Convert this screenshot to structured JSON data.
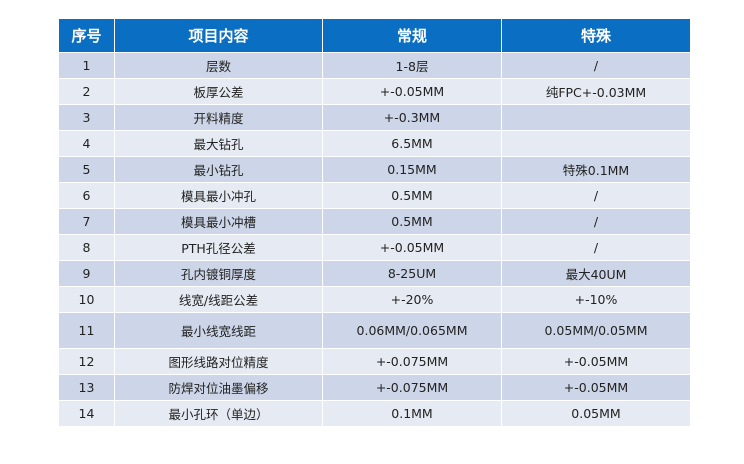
{
  "table": {
    "headers": [
      "序号",
      "项目内容",
      "常规",
      "特殊"
    ],
    "rows": [
      [
        "1",
        "层数",
        "1-8层",
        "/"
      ],
      [
        "2",
        "板厚公差",
        "+-0.05MM",
        "纯FPC+-0.03MM"
      ],
      [
        "3",
        "开料精度",
        "+-0.3MM",
        ""
      ],
      [
        "4",
        "最大钻孔",
        "6.5MM",
        ""
      ],
      [
        "5",
        "最小钻孔",
        "0.15MM",
        "特殊0.1MM"
      ],
      [
        "6",
        "模具最小冲孔",
        "0.5MM",
        "/"
      ],
      [
        "7",
        "模具最小冲槽",
        "0.5MM",
        "/"
      ],
      [
        "8",
        "PTH孔径公差",
        "+-0.05MM",
        "/"
      ],
      [
        "9",
        "孔内镀铜厚度",
        "8-25UM",
        "最大40UM"
      ],
      [
        "10",
        "线宽/线距公差",
        "+-20%",
        "+-10%"
      ],
      [
        "11",
        "最小线宽线距",
        "0.06MM/0.065MM",
        "0.05MM/0.05MM"
      ],
      [
        "12",
        "图形线路对位精度",
        "+-0.075MM",
        "+-0.05MM"
      ],
      [
        "13",
        "防焊对位油墨偏移",
        "+-0.075MM",
        "+-0.05MM"
      ],
      [
        "14",
        "最小孔环（单边）",
        "0.1MM",
        "0.05MM"
      ]
    ]
  },
  "colors": {
    "header_bg": "#0a6fc2",
    "row_odd_bg": "#cdd6e8",
    "row_even_bg": "#e6ebf3",
    "header_text": "#ffffff",
    "body_text": "#222222"
  }
}
